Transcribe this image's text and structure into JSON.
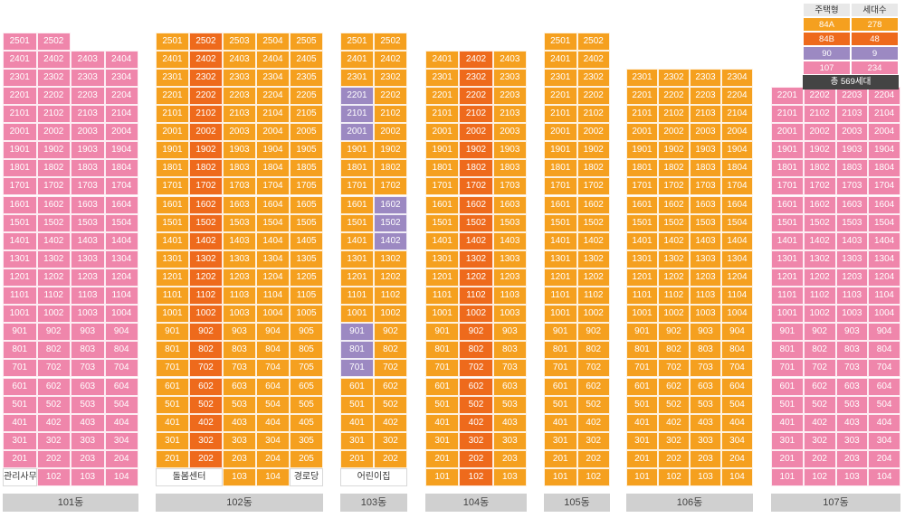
{
  "colors": {
    "84A": "#f5a01f",
    "84B": "#ee6a1c",
    "90": "#9c89c2",
    "107": "#ef86ab",
    "white": "#ffffff"
  },
  "legend": {
    "header": [
      "주택형",
      "세대수"
    ],
    "rows": [
      {
        "type": "84A",
        "count": "278",
        "color": "84A"
      },
      {
        "type": "84B",
        "count": "48",
        "color": "84B"
      },
      {
        "type": "90",
        "count": "9",
        "color": "90"
      },
      {
        "type": "107",
        "count": "234",
        "color": "107"
      }
    ],
    "total": "총 569세대"
  },
  "buildings": [
    {
      "name": "101동",
      "top_floor": 25,
      "cols": 4,
      "default": "107",
      "top_units": 2,
      "units": [
        "01",
        "02",
        "03",
        "04"
      ],
      "ground": [
        "관리사무소",
        "102",
        "103",
        "104"
      ],
      "ground_white": [
        0
      ],
      "overrides": []
    },
    {
      "name": "102동",
      "top_floor": 25,
      "cols": 5,
      "default": "84A",
      "top_units": 5,
      "units": [
        "01",
        "02",
        "03",
        "04",
        "05"
      ],
      "ground": [
        "돌봄센터",
        "",
        "103",
        "104",
        "경로당"
      ],
      "ground_white": [
        0,
        1,
        4
      ],
      "col_types": {
        "1": "84B"
      },
      "overrides": []
    },
    {
      "name": "103동",
      "top_floor": 25,
      "cols": 2,
      "default": "84A",
      "top_units": 2,
      "units": [
        "01",
        "02"
      ],
      "ground": [
        "어린이집",
        ""
      ],
      "ground_white": [
        0,
        1
      ],
      "overrides": [
        {
          "floor": 22,
          "col": 0,
          "type": "90"
        },
        {
          "floor": 21,
          "col": 0,
          "type": "90"
        },
        {
          "floor": 20,
          "col": 0,
          "type": "90"
        },
        {
          "floor": 16,
          "col": 1,
          "type": "90"
        },
        {
          "floor": 15,
          "col": 1,
          "type": "90"
        },
        {
          "floor": 14,
          "col": 1,
          "type": "90"
        },
        {
          "floor": 9,
          "col": 0,
          "type": "90"
        },
        {
          "floor": 8,
          "col": 0,
          "type": "90"
        },
        {
          "floor": 7,
          "col": 0,
          "type": "90"
        }
      ]
    },
    {
      "name": "104동",
      "top_floor": 24,
      "cols": 3,
      "default": "84A",
      "top_units": 3,
      "units": [
        "01",
        "02",
        "03"
      ],
      "ground": [
        "101",
        "102",
        "103"
      ],
      "ground_white": [],
      "col_types": {
        "1": "84B"
      },
      "overrides": []
    },
    {
      "name": "105동",
      "top_floor": 25,
      "cols": 2,
      "default": "84A",
      "top_units": 2,
      "units": [
        "01",
        "02"
      ],
      "ground": [
        "101",
        "102"
      ],
      "ground_white": [],
      "overrides": []
    },
    {
      "name": "106동",
      "top_floor": 23,
      "cols": 4,
      "default": "84A",
      "top_units": 4,
      "units": [
        "01",
        "02",
        "03",
        "04"
      ],
      "ground": [
        "101",
        "102",
        "103",
        "104"
      ],
      "ground_white": [],
      "overrides": []
    },
    {
      "name": "107동",
      "top_floor": 22,
      "cols": 4,
      "default": "107",
      "top_units": 4,
      "units": [
        "01",
        "02",
        "03",
        "04"
      ],
      "ground": [
        "101",
        "102",
        "103",
        "104"
      ],
      "ground_white": [],
      "overrides": []
    }
  ]
}
